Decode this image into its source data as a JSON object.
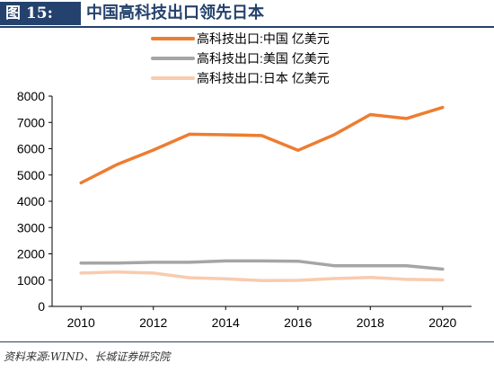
{
  "figure": {
    "tag": "图 15:",
    "title": "中国高科技出口领先日本",
    "source": "资料来源:WIND、长城证券研究院"
  },
  "chart_data": {
    "type": "line",
    "x": [
      2010,
      2011,
      2012,
      2013,
      2014,
      2015,
      2016,
      2017,
      2018,
      2019,
      2020
    ],
    "xticks": [
      2010,
      2012,
      2014,
      2016,
      2018,
      2020
    ],
    "yticks": [
      0,
      1000,
      2000,
      3000,
      4000,
      5000,
      6000,
      7000,
      8000
    ],
    "xlim": [
      2009.2,
      2020.8
    ],
    "ylim": [
      0,
      8000
    ],
    "grid": false,
    "legend_position": "top-center",
    "series": [
      {
        "name": "高科技出口:中国 亿美元",
        "color": "#ed7d31",
        "values": [
          4700,
          5400,
          5950,
          6550,
          6530,
          6500,
          5940,
          6530,
          7300,
          7150,
          7570
        ]
      },
      {
        "name": "高科技出口:美国 亿美元",
        "color": "#a5a5a5",
        "values": [
          1650,
          1650,
          1680,
          1680,
          1730,
          1730,
          1720,
          1550,
          1550,
          1550,
          1420
        ]
      },
      {
        "name": "高科技出口:日本 亿美元",
        "color": "#f8cbad",
        "values": [
          1270,
          1310,
          1270,
          1090,
          1050,
          980,
          990,
          1060,
          1100,
          1030,
          1010
        ]
      }
    ]
  }
}
